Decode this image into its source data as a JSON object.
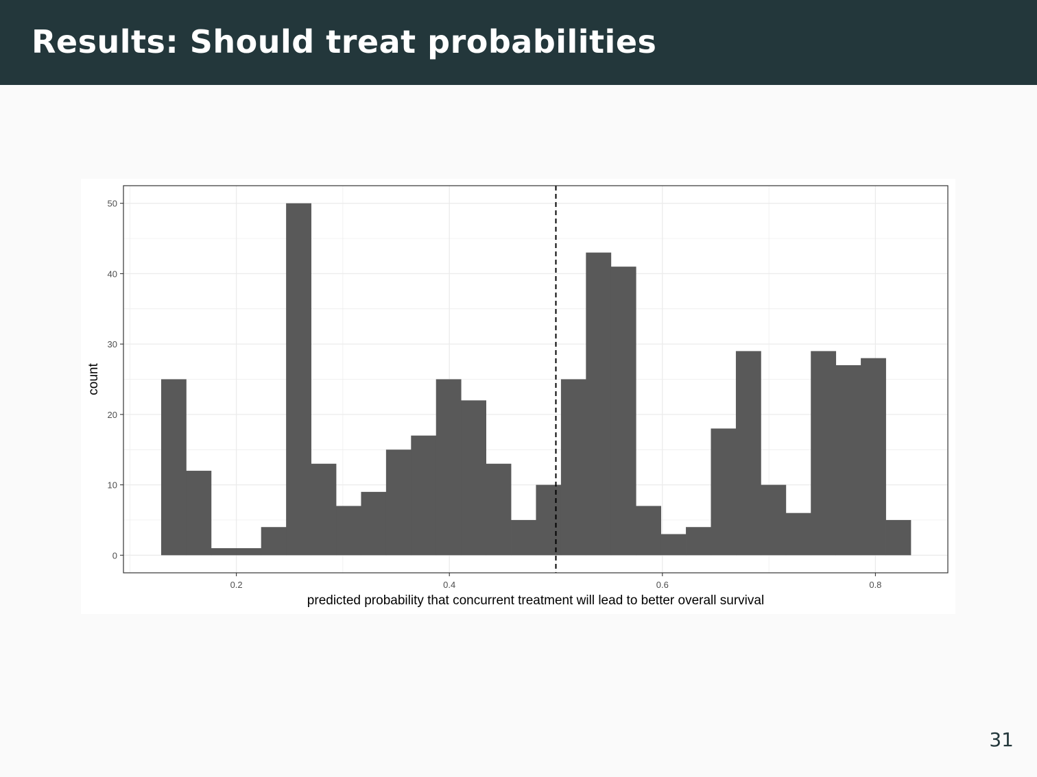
{
  "slide": {
    "title": "Results: Should treat probabilities",
    "page_number": "31"
  },
  "colors": {
    "header_bg": "#23373b",
    "bar_fill": "#595959",
    "grid": "#ebebeb",
    "panel_border": "#333333"
  },
  "chart_data": {
    "type": "bar",
    "subtype": "histogram",
    "title": "",
    "xlabel": "predicted probability that concurrent treatment will lead to better overall survival",
    "ylabel": "count",
    "xlim": [
      0.094,
      0.868
    ],
    "ylim": [
      -2.5,
      52.5
    ],
    "x_ticks": [
      0.2,
      0.4,
      0.6,
      0.8
    ],
    "x_tick_labels": [
      "0.2",
      "0.4",
      "0.6",
      "0.8"
    ],
    "y_ticks": [
      0,
      10,
      20,
      30,
      40,
      50
    ],
    "y_tick_labels": [
      "0",
      "10",
      "20",
      "30",
      "40",
      "50"
    ],
    "bin_start": 0.1294,
    "bin_width": 0.02346,
    "counts": [
      25,
      12,
      1,
      1,
      4,
      50,
      13,
      7,
      9,
      15,
      17,
      25,
      22,
      13,
      5,
      10,
      25,
      43,
      41,
      7,
      3,
      4,
      18,
      29,
      10,
      6,
      29,
      27,
      28,
      5
    ],
    "vline": {
      "x": 0.5,
      "style": "dashed"
    },
    "grid": true,
    "legend": "none"
  }
}
